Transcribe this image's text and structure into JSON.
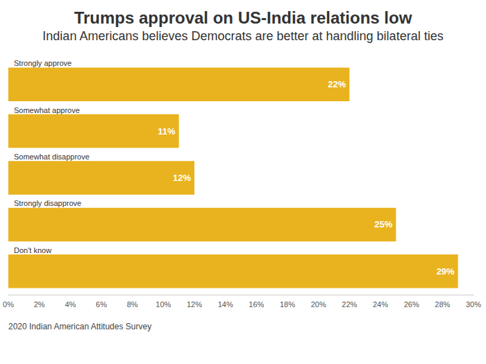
{
  "chart_data": {
    "type": "bar",
    "orientation": "horizontal",
    "title": "Trumps approval on US-India relations low",
    "subtitle": "Indian Americans believes Democrats are better at handling bilateral ties",
    "source": "2020 Indian American Attitudes Survey",
    "categories": [
      "Strongly approve",
      "Somewhat approve",
      "Somewhat disapprove",
      "Strongly disapprove",
      "Don't know"
    ],
    "values": [
      22,
      11,
      12,
      25,
      29
    ],
    "value_labels": [
      "22%",
      "11%",
      "12%",
      "25%",
      "29%"
    ],
    "color": "#e9b31f",
    "xlim": [
      0,
      30
    ],
    "xticks": [
      {
        "value": 0,
        "label": "0%"
      },
      {
        "value": 2,
        "label": "2%"
      },
      {
        "value": 4,
        "label": "4%"
      },
      {
        "value": 6,
        "label": "6%"
      },
      {
        "value": 8,
        "label": "8%"
      },
      {
        "value": 10,
        "label": "10%"
      },
      {
        "value": 12,
        "label": "12%"
      },
      {
        "value": 14,
        "label": "14%"
      },
      {
        "value": 16,
        "label": "16%"
      },
      {
        "value": 18,
        "label": "18%"
      },
      {
        "value": 20,
        "label": "20%"
      },
      {
        "value": 22,
        "label": "22%"
      },
      {
        "value": 24,
        "label": "24%"
      },
      {
        "value": 26,
        "label": "26%"
      },
      {
        "value": 28,
        "label": "28%"
      },
      {
        "value": 30,
        "label": "30%"
      }
    ],
    "grid": false,
    "data_labels": true
  }
}
